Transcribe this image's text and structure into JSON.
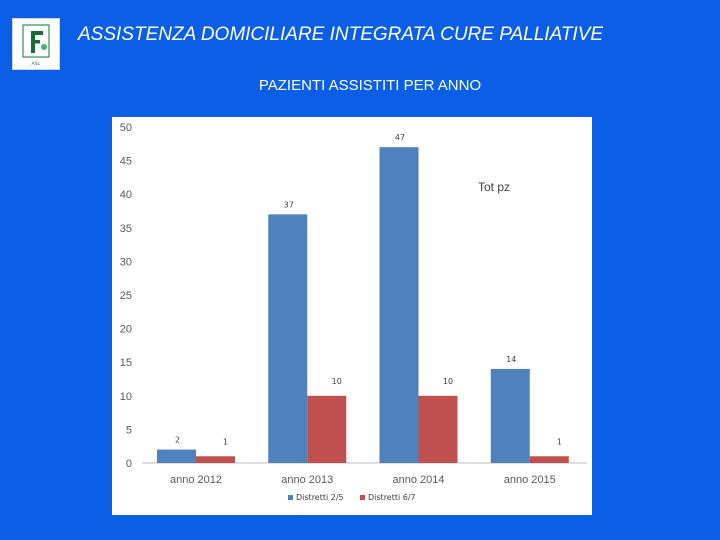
{
  "header": {
    "title": "ASSISTENZA DOMICILIARE  INTEGRATA CURE PALLIATIVE",
    "logo_text": "ASL"
  },
  "chart_data": {
    "type": "bar",
    "title": "PAZIENTI ASSISTITI PER ANNO",
    "categories": [
      "anno 2012",
      "anno 2013",
      "anno 2014",
      "anno 2015"
    ],
    "series": [
      {
        "name": "Distretti 2/5",
        "color": "#4f81bd",
        "values": [
          2,
          37,
          47,
          14
        ]
      },
      {
        "name": "Distretti 6/7",
        "color": "#c0504d",
        "values": [
          1,
          10,
          10,
          1
        ]
      }
    ],
    "ylim": [
      0,
      50
    ],
    "yticks": [
      0,
      5,
      10,
      15,
      20,
      25,
      30,
      35,
      40,
      45,
      50
    ],
    "annotation": "Tot pz",
    "legend_position": "bottom",
    "grid": false
  }
}
